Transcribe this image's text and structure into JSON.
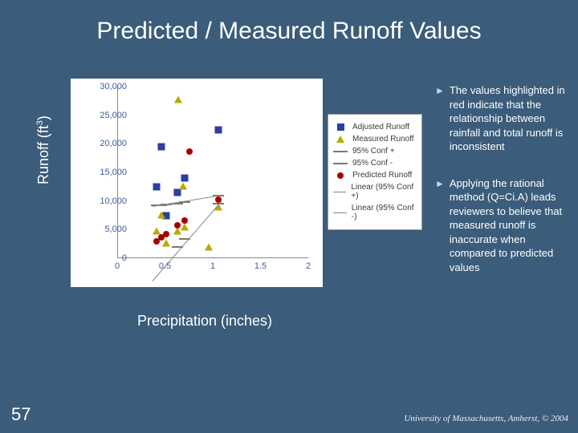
{
  "title": "Predicted / Measured Runoff Values",
  "ylabel_main": "Runoff (ft",
  "ylabel_sup": "3",
  "ylabel_tail": ")",
  "xlabel": "Precipitation (inches)",
  "page_number": "57",
  "credit": "University of Massachusetts, Amherst, © 2004",
  "bullets": [
    "The values highlighted in red indicate that the relationship between rainfall and total runoff is inconsistent",
    "Applying the rational method (Q=Ci.A) leads reviewers to believe that measured runoff is inaccurate when compared to predicted values"
  ],
  "chart": {
    "type": "scatter",
    "background_color": "#ffffff",
    "axis_color": "#888888",
    "tick_color": "#3b5b9a",
    "tick_fontsize": 11,
    "xlim": [
      0,
      2
    ],
    "ylim": [
      0,
      30000
    ],
    "xticks": [
      0,
      0.5,
      1,
      1.5,
      2
    ],
    "yticks": [
      0,
      5000,
      10000,
      15000,
      20000,
      25000,
      30000
    ],
    "ytick_labels": [
      "0",
      "5,000",
      "10,000",
      "15,000",
      "20,000",
      "25,000",
      "30,000"
    ],
    "series": [
      {
        "name": "Adjusted Runoff",
        "marker": "square",
        "color": "#2b3fa0",
        "points": [
          [
            0.4,
            12500
          ],
          [
            0.45,
            19500
          ],
          [
            0.5,
            7500
          ],
          [
            0.62,
            11500
          ],
          [
            0.7,
            14000
          ],
          [
            1.05,
            22500
          ]
        ]
      },
      {
        "name": "Measured Runoff",
        "marker": "triangle",
        "color": "#b9a900",
        "points": [
          [
            0.4,
            4800
          ],
          [
            0.45,
            7600
          ],
          [
            0.5,
            2700
          ],
          [
            0.62,
            4700
          ],
          [
            0.63,
            27700
          ],
          [
            0.68,
            12600
          ],
          [
            0.7,
            5500
          ],
          [
            0.95,
            1900
          ],
          [
            1.05,
            9000
          ]
        ]
      },
      {
        "name": "95% Conf +",
        "marker": "dash",
        "color": "#777777",
        "points": [
          [
            0.4,
            9200
          ],
          [
            0.45,
            9300
          ],
          [
            0.5,
            9400
          ],
          [
            0.62,
            9600
          ],
          [
            0.7,
            9800
          ],
          [
            1.05,
            11000
          ]
        ]
      },
      {
        "name": "95% Conf -",
        "marker": "dash",
        "color": "#777777",
        "points": [
          [
            0.4,
            -3200
          ],
          [
            0.45,
            -2000
          ],
          [
            0.5,
            -900
          ],
          [
            0.62,
            2000
          ],
          [
            0.7,
            3400
          ],
          [
            1.05,
            9500
          ]
        ]
      },
      {
        "name": "Predicted Runoff",
        "marker": "dot",
        "color": "#a80000",
        "points": [
          [
            0.4,
            3000
          ],
          [
            0.45,
            3700
          ],
          [
            0.5,
            4200
          ],
          [
            0.62,
            5800
          ],
          [
            0.7,
            6600
          ],
          [
            0.75,
            18600
          ],
          [
            1.05,
            10300
          ]
        ]
      },
      {
        "name": "Linear (95% Conf +)",
        "marker": "line",
        "color": "#888888",
        "line": [
          [
            0.36,
            9150
          ],
          [
            1.08,
            11100
          ]
        ]
      },
      {
        "name": "Linear (95% Conf -)",
        "marker": "line",
        "color": "#888888",
        "line": [
          [
            0.36,
            -3900
          ],
          [
            1.08,
            10000
          ]
        ]
      }
    ],
    "legend": {
      "border_color": "#999999",
      "background": "#ffffff",
      "fontsize": 10
    }
  },
  "colors": {
    "slide_bg": "#3b5c7a",
    "arrow": "#c7d9e8"
  }
}
